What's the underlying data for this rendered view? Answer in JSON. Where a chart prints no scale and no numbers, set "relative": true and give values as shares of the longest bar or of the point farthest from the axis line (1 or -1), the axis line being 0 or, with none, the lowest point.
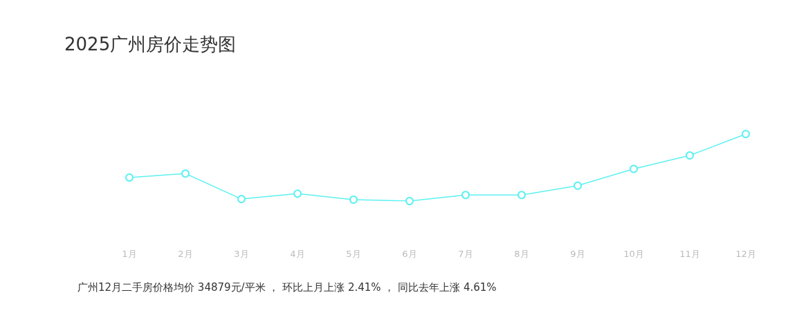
{
  "chart_data": {
    "type": "line",
    "title": "2025广州房价走势图",
    "relative": true,
    "categories": [
      "1月",
      "2月",
      "3月",
      "4月",
      "5月",
      "6月",
      "7月",
      "8月",
      "9月",
      "10月",
      "11月",
      "12月"
    ],
    "series": [
      {
        "color": "#5ef0f0",
        "values": [
          0.35,
          0.41,
          0.03,
          0.11,
          0.02,
          0,
          0.09,
          0.09,
          0.23,
          0.48,
          0.68,
          1
        ]
      }
    ],
    "marker": "circle",
    "annotations": [
      "广州12月二手房价格均价 34879元/平米 ， 环比上月上涨 2.41% ， 同比去年上涨 4.61%"
    ]
  }
}
